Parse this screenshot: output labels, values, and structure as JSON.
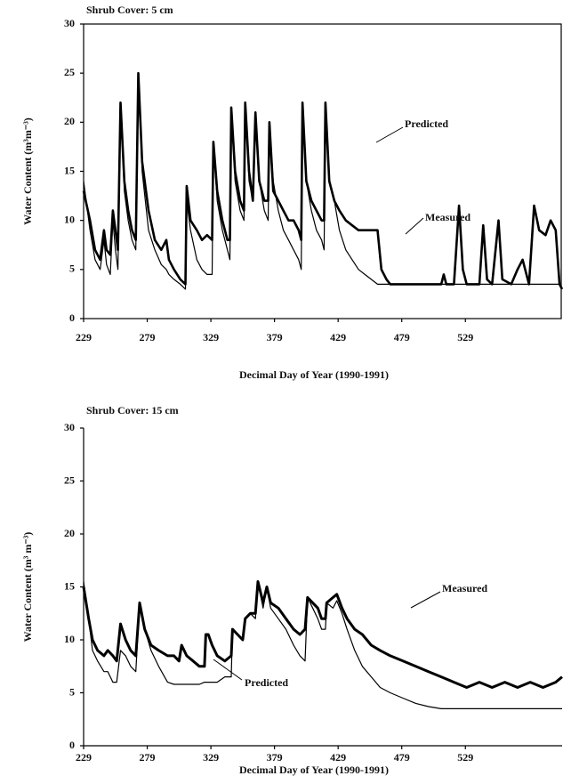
{
  "chart_data": [
    {
      "type": "line",
      "title": "Shrub Cover: 5 cm",
      "x_label": "Decimal Day of Year (1990-1991)",
      "y_label": "Water Content (m³m⁻³)",
      "xlim": [
        229,
        605
      ],
      "ylim": [
        0,
        30
      ],
      "xticks": [
        229,
        279,
        329,
        379,
        429,
        479,
        529
      ],
      "yticks": [
        0,
        5,
        10,
        15,
        20,
        25,
        30
      ],
      "x": [
        229,
        234,
        238,
        242,
        245,
        247,
        250,
        252,
        254,
        256,
        258,
        261,
        264,
        267,
        270,
        272,
        275,
        280,
        285,
        290,
        294,
        296,
        300,
        305,
        309,
        310,
        313,
        318,
        322,
        326,
        330,
        331,
        334,
        338,
        342,
        344,
        345,
        348,
        352,
        355,
        356,
        359,
        362,
        364,
        367,
        371,
        374,
        375,
        378,
        382,
        386,
        390,
        394,
        398,
        400,
        401,
        404,
        408,
        412,
        416,
        418,
        419,
        422,
        426,
        430,
        435,
        440,
        445,
        450,
        455,
        460,
        463,
        467,
        470,
        478,
        510,
        512,
        514,
        520,
        524,
        527,
        530,
        540,
        543,
        546,
        550,
        555,
        558,
        565,
        570,
        574,
        579,
        583,
        587,
        592,
        596,
        600,
        603,
        605
      ],
      "series": [
        {
          "name": "Measured",
          "color": "#000000",
          "values": [
            13,
            10,
            7,
            6,
            9,
            7,
            6.5,
            11,
            9,
            7,
            22,
            14,
            11,
            9,
            8,
            25,
            16,
            11,
            8,
            7,
            8,
            6,
            5,
            4,
            3.5,
            13.5,
            10,
            9,
            8,
            8.5,
            8,
            18,
            13,
            10,
            8,
            8,
            21.5,
            15,
            12,
            11,
            22,
            15,
            12,
            21,
            14,
            12,
            12,
            20,
            13,
            12,
            11,
            10,
            10,
            9,
            8,
            22,
            14,
            12,
            11,
            10,
            10,
            22,
            14,
            12,
            11,
            10,
            9.5,
            9,
            9,
            9,
            9,
            5,
            4,
            3.5,
            3.5,
            3.5,
            4.5,
            3.5,
            3.5,
            11.5,
            5,
            3.5,
            3.5,
            9.5,
            4,
            3.5,
            10,
            4,
            3.5,
            5,
            6,
            3.5,
            11.5,
            9,
            8.5,
            10,
            9,
            3.5,
            3
          ]
        },
        {
          "name": "Predicted",
          "color": "#000000",
          "values": [
            14,
            9,
            6,
            5,
            8,
            5.5,
            4.5,
            10,
            7,
            5,
            22,
            13,
            10,
            8,
            7,
            25,
            15,
            9,
            7,
            5.5,
            5,
            4.5,
            4,
            3.5,
            3,
            12,
            9,
            6,
            5,
            4.5,
            4.5,
            18,
            12,
            9,
            7,
            6,
            21.5,
            14,
            11,
            10,
            22,
            14,
            12,
            21,
            14,
            11,
            10,
            20,
            14,
            11,
            9,
            8,
            7,
            6,
            5,
            22,
            14,
            11,
            9,
            8,
            7,
            22,
            14,
            12,
            9,
            7,
            6,
            5,
            4.5,
            4,
            3.5,
            3.5,
            3.5,
            3.5,
            3.5,
            3.5,
            3.5,
            3.5,
            3.5,
            3.5,
            3.5,
            3.5,
            3.5,
            3.5,
            3.5,
            3.5,
            3.5,
            3.5,
            3.5,
            3.5,
            3.5,
            3.5,
            3.5,
            3.5,
            3.5,
            3.5,
            3.5,
            3.5,
            3
          ]
        }
      ]
    },
    {
      "type": "line",
      "title": "Shrub Cover: 15 cm",
      "x_label": "Decimal Day of Year (1990-1991)",
      "y_label": "Water Content (m³ m⁻³)",
      "xlim": [
        229,
        605
      ],
      "ylim": [
        0,
        30
      ],
      "xticks": [
        229,
        279,
        329,
        379,
        429,
        479,
        529
      ],
      "yticks": [
        0,
        5,
        10,
        15,
        20,
        25,
        30
      ],
      "x": [
        229,
        233,
        236,
        240,
        245,
        248,
        252,
        255,
        258,
        262,
        266,
        270,
        273,
        277,
        282,
        288,
        295,
        300,
        304,
        306,
        310,
        315,
        320,
        324,
        325,
        327,
        330,
        334,
        340,
        345,
        346,
        350,
        354,
        356,
        360,
        364,
        366,
        370,
        373,
        376,
        382,
        388,
        394,
        399,
        403,
        405,
        409,
        413,
        416,
        419,
        420,
        425,
        428,
        432,
        436,
        442,
        448,
        455,
        462,
        470,
        480,
        490,
        500,
        510,
        520,
        530,
        540,
        550,
        560,
        570,
        580,
        590,
        600,
        605
      ],
      "series": [
        {
          "name": "Measured",
          "color": "#000000",
          "values": [
            15,
            12,
            10,
            9,
            8.5,
            9,
            8.5,
            8,
            11.5,
            10,
            9,
            8.5,
            13.5,
            11,
            9.5,
            9,
            8.5,
            8.5,
            8,
            9.5,
            8.5,
            8,
            7.5,
            7.5,
            10.5,
            10.5,
            9.5,
            8.5,
            8,
            8.5,
            11,
            10.5,
            10,
            12,
            12.5,
            12.5,
            15.5,
            13.5,
            15,
            13.5,
            13,
            12,
            11,
            10.5,
            11,
            14,
            13.5,
            13,
            12,
            12,
            13.5,
            14,
            14.3,
            13,
            12,
            11,
            10.5,
            9.5,
            9,
            8.5,
            8,
            7.5,
            7,
            6.5,
            6,
            5.5,
            6,
            5.5,
            6,
            5.5,
            6,
            5.5,
            6,
            6.5
          ]
        },
        {
          "name": "Predicted",
          "color": "#000000",
          "values": [
            15.5,
            12,
            9,
            8,
            7,
            7,
            6,
            6,
            9,
            8.5,
            7.5,
            7,
            13.5,
            11,
            9,
            7.5,
            6,
            5.8,
            5.8,
            5.8,
            5.8,
            5.8,
            5.8,
            6,
            6,
            6,
            6,
            6,
            6.5,
            6.5,
            11,
            10.5,
            10,
            12,
            12.5,
            12,
            15.5,
            13,
            15,
            13,
            12,
            11,
            9.5,
            8.5,
            8,
            14,
            13,
            12,
            11,
            11,
            13.5,
            13,
            13.7,
            12.5,
            11,
            9,
            7.5,
            6.5,
            5.5,
            5,
            4.5,
            4,
            3.7,
            3.5,
            3.5,
            3.5,
            3.5,
            3.5,
            3.5,
            3.5,
            3.5,
            3.5,
            3.5,
            3.5
          ]
        }
      ]
    }
  ]
}
